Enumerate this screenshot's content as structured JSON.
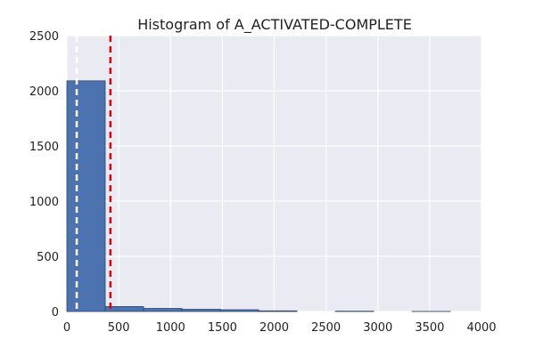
{
  "chart_data": {
    "type": "bar",
    "title": "Histogram of A_ACTIVATED-COMPLETE",
    "xlabel": "",
    "ylabel": "",
    "xlim": [
      0,
      4000
    ],
    "ylim": [
      0,
      2500
    ],
    "x_ticks": [
      "0",
      "500",
      "1000",
      "1500",
      "2000",
      "2500",
      "3000",
      "3500",
      "4000"
    ],
    "y_ticks": [
      "0",
      "500",
      "1000",
      "1500",
      "2000",
      "2500"
    ],
    "grid": true,
    "legend": "none",
    "bins": [
      {
        "x0": 0,
        "x1": 370,
        "count": 2090
      },
      {
        "x0": 370,
        "x1": 740,
        "count": 45
      },
      {
        "x0": 740,
        "x1": 1110,
        "count": 28
      },
      {
        "x0": 1110,
        "x1": 1480,
        "count": 20
      },
      {
        "x0": 1480,
        "x1": 1850,
        "count": 16
      },
      {
        "x0": 1850,
        "x1": 2220,
        "count": 6
      },
      {
        "x0": 2220,
        "x1": 2590,
        "count": 0
      },
      {
        "x0": 2590,
        "x1": 2960,
        "count": 3
      },
      {
        "x0": 2960,
        "x1": 3330,
        "count": 0
      },
      {
        "x0": 3330,
        "x1": 3700,
        "count": 1
      }
    ],
    "reference_lines": [
      {
        "x": 95,
        "color": "#ffffff",
        "style": "dashed"
      },
      {
        "x": 420,
        "color": "#e8000b",
        "style": "dashed"
      }
    ],
    "colors": {
      "background": "#eaeaf2",
      "bar_fill": "#4c72b0",
      "bar_edge": "#30466b",
      "grid": "#ffffff"
    }
  }
}
